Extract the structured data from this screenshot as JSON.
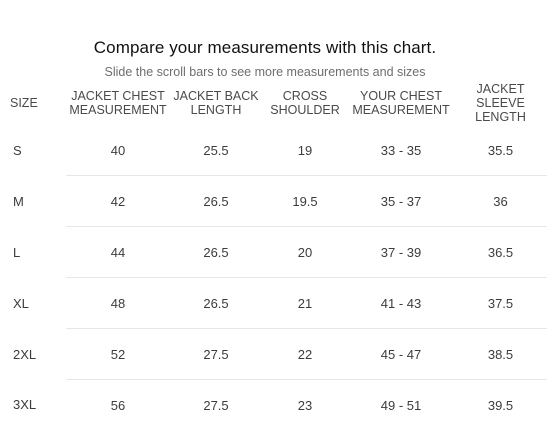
{
  "header": {
    "title": "Compare your measurements with this chart.",
    "subtitle": "Slide the scroll bars to see more measurements and sizes"
  },
  "table": {
    "columns": [
      [
        "SIZE"
      ],
      [
        "JACKET CHEST",
        "MEASUREMENT"
      ],
      [
        "JACKET BACK",
        "LENGTH"
      ],
      [
        "CROSS",
        "SHOULDER"
      ],
      [
        "YOUR CHEST",
        "MEASUREMENT"
      ],
      [
        "JACKET",
        "SLEEVE",
        "LENGTH"
      ]
    ],
    "rows": [
      [
        "S",
        "40",
        "25.5",
        "19",
        "33 - 35",
        "35.5"
      ],
      [
        "M",
        "42",
        "26.5",
        "19.5",
        "35 - 37",
        "36"
      ],
      [
        "L",
        "44",
        "26.5",
        "20",
        "37 - 39",
        "36.5"
      ],
      [
        "XL",
        "48",
        "26.5",
        "21",
        "41 - 43",
        "37.5"
      ],
      [
        "2XL",
        "52",
        "27.5",
        "22",
        "45 - 47",
        "38.5"
      ],
      [
        "3XL",
        "56",
        "27.5",
        "23",
        "49 - 51",
        "39.5"
      ]
    ]
  }
}
